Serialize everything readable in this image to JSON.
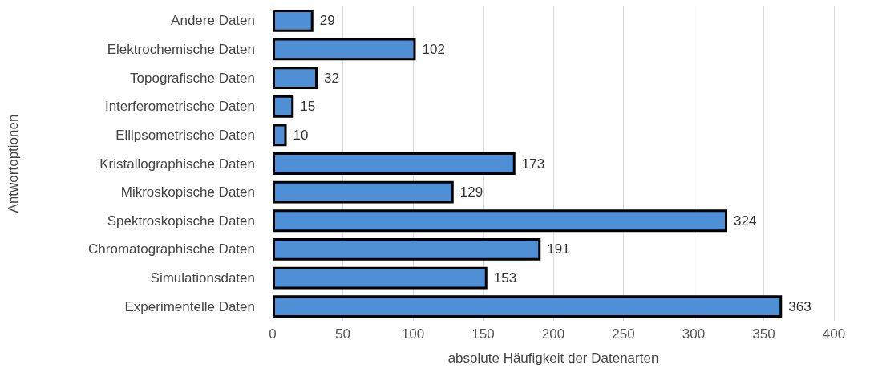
{
  "chart_data": {
    "type": "bar",
    "orientation": "horizontal",
    "categories": [
      "Andere Daten",
      "Elektrochemische Daten",
      "Topografische Daten",
      "Interferometrische Daten",
      "Ellipsometrische Daten",
      "Kristallographische Daten",
      "Mikroskopische Daten",
      "Spektroskopische Daten",
      "Chromatographische Daten",
      "Simulationsdaten",
      "Experimentelle Daten"
    ],
    "values": [
      29,
      102,
      32,
      15,
      10,
      173,
      129,
      324,
      191,
      153,
      363
    ],
    "color": "#4f8fd6",
    "xlim": [
      0,
      400
    ],
    "xticks": [
      0,
      50,
      100,
      150,
      200,
      250,
      300,
      350,
      400
    ],
    "xlabel": "absolute Häufigkeit der Datenarten",
    "ylabel": "Antwortoptionen",
    "grid": "x",
    "data_labels": true
  }
}
